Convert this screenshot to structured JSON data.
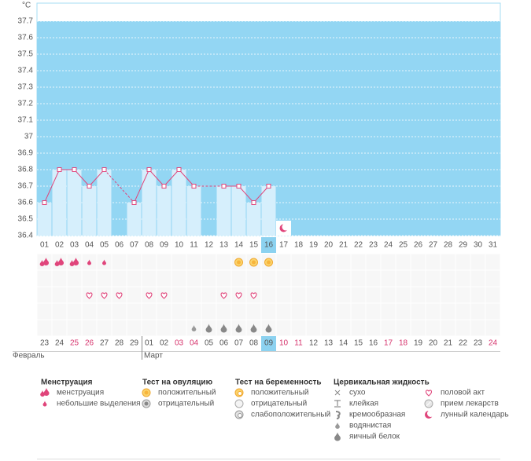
{
  "chart_data": {
    "type": "line",
    "y_unit": "°C",
    "categories": [
      "01",
      "02",
      "03",
      "04",
      "05",
      "06",
      "07",
      "08",
      "09",
      "10",
      "11",
      "12",
      "13",
      "14",
      "15",
      "16",
      "17",
      "18",
      "19",
      "20",
      "21",
      "22",
      "23",
      "24",
      "25",
      "26",
      "27",
      "28",
      "29",
      "30",
      "31"
    ],
    "values": [
      36.6,
      36.8,
      36.8,
      36.7,
      36.8,
      null,
      36.6,
      36.8,
      36.7,
      36.8,
      36.7,
      null,
      36.7,
      36.7,
      36.6,
      36.7,
      null,
      null,
      null,
      null,
      null,
      null,
      null,
      null,
      null,
      null,
      null,
      null,
      null,
      null,
      null
    ],
    "color": "#e0457b",
    "bar_color": "#d6effc",
    "background": "#93d6f3",
    "ylim": [
      36.4,
      37.8
    ],
    "yticks": [
      36.4,
      36.5,
      36.6,
      36.7,
      36.8,
      36.9,
      37,
      37.1,
      37.2,
      37.3,
      37.4,
      37.5,
      37.6,
      37.7
    ],
    "grid": true,
    "highlight": "16"
  },
  "calendar": {
    "months": [
      {
        "name": "Февраль",
        "dates": [
          {
            "text": "23"
          },
          {
            "text": "24"
          },
          {
            "text": "25",
            "weekend": true
          },
          {
            "text": "26",
            "weekend": true
          },
          {
            "text": "27"
          },
          {
            "text": "28"
          },
          {
            "text": "29"
          }
        ]
      },
      {
        "name": "Март",
        "dates": [
          {
            "text": "01"
          },
          {
            "text": "02"
          },
          {
            "text": "03",
            "weekend": true
          },
          {
            "text": "04",
            "weekend": true
          },
          {
            "text": "05"
          },
          {
            "text": "06"
          },
          {
            "text": "07"
          },
          {
            "text": "08"
          },
          {
            "text": "09"
          },
          {
            "text": "10",
            "weekend": true
          },
          {
            "text": "11",
            "weekend": true
          },
          {
            "text": "12"
          },
          {
            "text": "13"
          },
          {
            "text": "14"
          },
          {
            "text": "15"
          },
          {
            "text": "16"
          },
          {
            "text": "17",
            "weekend": true
          },
          {
            "text": "18",
            "weekend": true
          },
          {
            "text": "19"
          },
          {
            "text": "20"
          },
          {
            "text": "21"
          },
          {
            "text": "22"
          },
          {
            "text": "23"
          },
          {
            "text": "24",
            "weekend": true
          }
        ]
      }
    ]
  },
  "legend": [
    {
      "title": "Менструация",
      "items": [
        {
          "label": "менструация",
          "days": [
            "01",
            "02",
            "03"
          ]
        },
        {
          "label": "небольшие выделения",
          "days": [
            "04",
            "05"
          ]
        }
      ]
    },
    {
      "title": "Тест на овуляцию",
      "items": [
        {
          "label": "положительный",
          "days": [
            "14",
            "15",
            "16"
          ]
        },
        {
          "label": "отрицательный",
          "days": []
        }
      ]
    },
    {
      "title": "Тест на беременность",
      "items": [
        {
          "label": "положительный",
          "days": []
        },
        {
          "label": "отрицательный",
          "days": []
        },
        {
          "label": "слабоположительный",
          "days": []
        }
      ]
    },
    {
      "title": "Цервикальная жидкость",
      "items": [
        {
          "label": "сухо",
          "days": []
        },
        {
          "label": "клейкая",
          "days": []
        },
        {
          "label": "кремообразная",
          "days": []
        },
        {
          "label": "водянистая",
          "days": [
            "11"
          ]
        },
        {
          "label": "яичный белок",
          "days": [
            "12",
            "13",
            "14",
            "15",
            "16"
          ]
        }
      ]
    },
    {
      "items": [
        {
          "label": "половой акт",
          "days": [
            "04",
            "05",
            "06",
            "08",
            "09",
            "13",
            "14",
            "15"
          ]
        },
        {
          "label": "прием лекарств",
          "days": []
        },
        {
          "label": "лунный календарь",
          "days": [
            "17"
          ]
        }
      ]
    }
  ]
}
